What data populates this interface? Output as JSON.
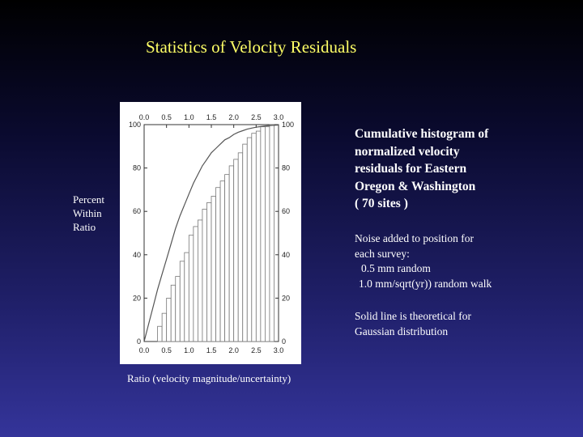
{
  "slide": {
    "title": "Statistics of Velocity Residuals",
    "ylabel_lines": [
      "Percent",
      "Within",
      "Ratio"
    ],
    "xlabel": "Ratio (velocity magnitude/uncertainty)",
    "caption_lines": [
      "Cumulative histogram of",
      "normalized velocity",
      "residuals for Eastern",
      "Oregon & Washington",
      "( 70 sites )"
    ],
    "noise_lines": [
      "Noise added to position for",
      "each survey:",
      "0.5 mm random",
      "1.0 mm/sqrt(yr)) random walk"
    ],
    "solid_lines": [
      "Solid line is theoretical for",
      "Gaussian distribution"
    ],
    "colors": {
      "title": "#ffff66",
      "background_top": "#000000",
      "background_bottom": "#34349a"
    }
  },
  "chart_data": {
    "type": "bar",
    "x_tick_labels": [
      "0.0",
      "0.5",
      "1.0",
      "1.5",
      "2.0",
      "2.5",
      "3.0"
    ],
    "y_tick_labels": [
      "0",
      "20",
      "40",
      "60",
      "80",
      "100"
    ],
    "xlim": [
      0,
      3
    ],
    "ylim": [
      0,
      100
    ],
    "bin_width": 0.1,
    "series": [
      {
        "type": "bar",
        "bin_starts": [
          0.3,
          0.4,
          0.5,
          0.6,
          0.7,
          0.8,
          0.9,
          1.0,
          1.1,
          1.2,
          1.3,
          1.4,
          1.5,
          1.6,
          1.7,
          1.8,
          1.9,
          2.0,
          2.1,
          2.2,
          2.3,
          2.4,
          2.5,
          2.6,
          2.7,
          2.8
        ],
        "values": [
          7,
          13,
          20,
          26,
          30,
          37,
          41,
          49,
          53,
          56,
          61,
          64,
          67,
          71,
          74,
          77,
          81,
          84,
          87,
          91,
          94,
          96,
          97,
          99,
          99,
          100
        ]
      },
      {
        "type": "line",
        "x": [
          0.0,
          0.1,
          0.2,
          0.3,
          0.4,
          0.5,
          0.6,
          0.7,
          0.8,
          0.9,
          1.0,
          1.1,
          1.2,
          1.3,
          1.4,
          1.5,
          1.6,
          1.7,
          1.8,
          1.9,
          2.0,
          2.1,
          2.2,
          2.3,
          2.4,
          2.5,
          2.6,
          2.7,
          2.8,
          2.9,
          3.0
        ],
        "values": [
          0,
          8,
          16,
          24,
          31,
          38,
          45,
          52,
          58,
          63,
          68,
          73,
          77,
          81,
          84,
          87,
          89,
          91,
          93,
          94,
          95.5,
          96.5,
          97.2,
          97.9,
          98.4,
          98.8,
          99.1,
          99.4,
          99.6,
          99.7,
          99.8
        ]
      }
    ]
  }
}
